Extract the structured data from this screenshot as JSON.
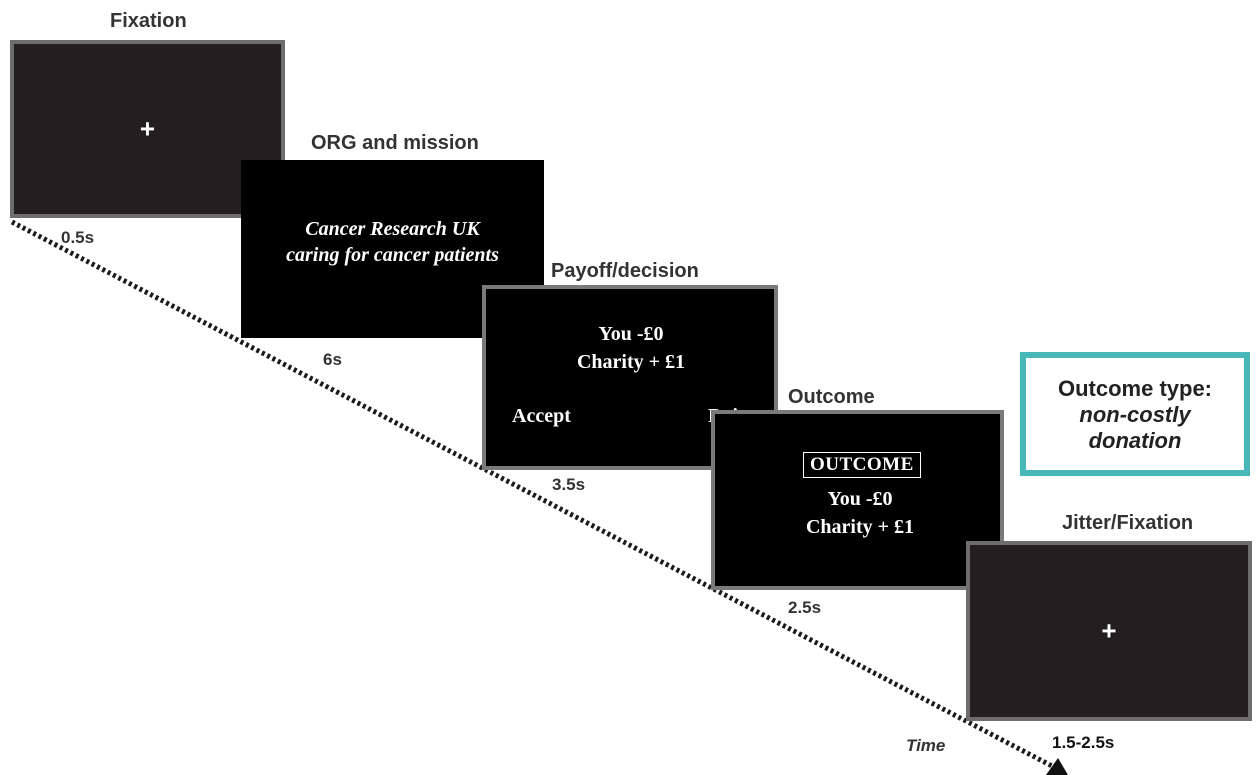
{
  "stages": {
    "fixation": {
      "title": "Fixation",
      "symbol": "+",
      "duration": "0.5s"
    },
    "org": {
      "title": "ORG and mission",
      "line1": "Cancer Research UK",
      "line2": "caring for cancer patients",
      "duration": "6s"
    },
    "payoff": {
      "title": "Payoff/decision",
      "you": "You -£0",
      "charity": "Charity + £1",
      "accept": "Accept",
      "reject": "Reject",
      "duration": "3.5s"
    },
    "outcome": {
      "title": "Outcome",
      "header": "OUTCOME",
      "you": "You -£0",
      "charity": "Charity + £1",
      "duration": "2.5s"
    },
    "jitter": {
      "title": "Jitter/Fixation",
      "symbol": "+",
      "duration": "1.5-2.5s"
    }
  },
  "time_label": "Time",
  "outcome_type": {
    "line1": "Outcome type:",
    "line2": "non-costly",
    "line3": "donation"
  },
  "colors": {
    "accent_box": "#49b7b7",
    "screen_gray": "#231f20",
    "screen_black": "#000000"
  }
}
